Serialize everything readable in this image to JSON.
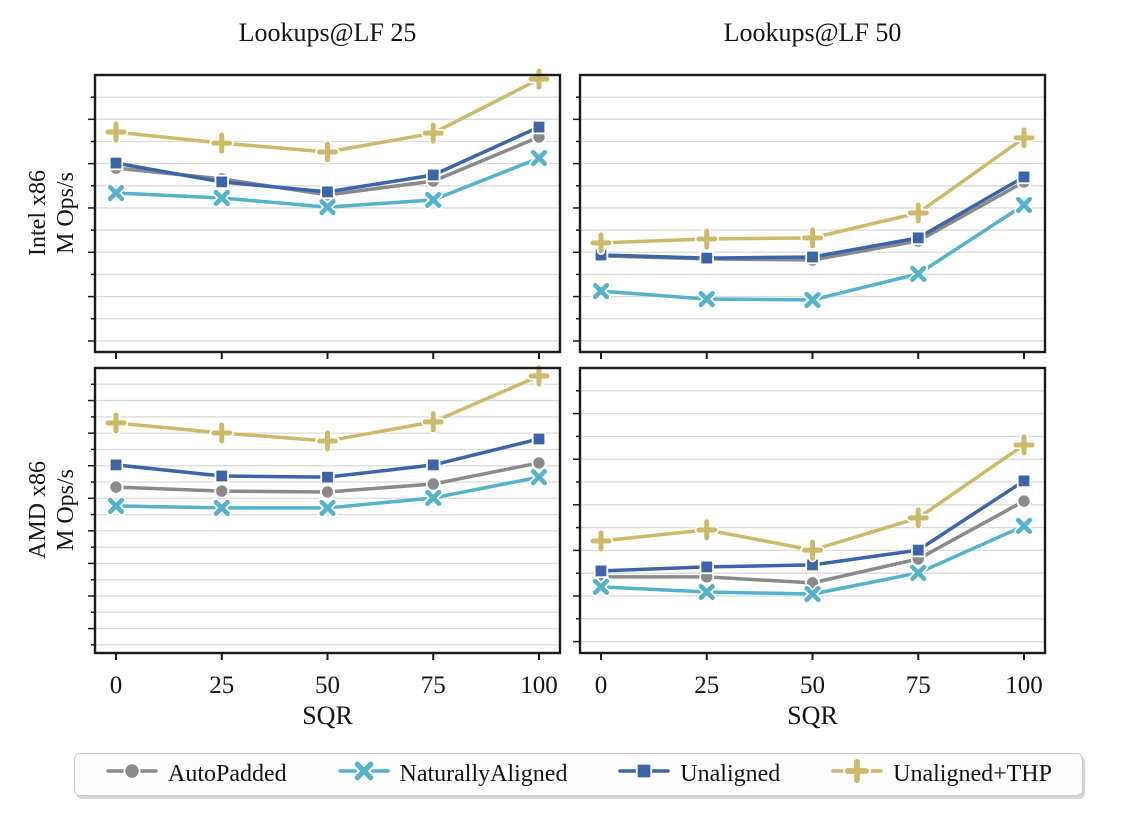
{
  "figure": {
    "column_titles": [
      "Lookups@LF 25",
      "Lookups@LF 50"
    ],
    "row_labels": [
      {
        "line1": "Intel x86",
        "line2": "M Ops/s"
      },
      {
        "line1": "AMD x86",
        "line2": "M Ops/s"
      }
    ],
    "xlabel": "SQR",
    "x_ticks": [
      "0",
      "25",
      "50",
      "75",
      "100"
    ]
  },
  "style": {
    "gray": "#8a8a8a",
    "cyan": "#54b2ca",
    "blue": "#3c64a8",
    "khaki": "#ccba6a",
    "grid_color": "#dadada",
    "spine_color": "#1b1b1b",
    "text_color": "#141414",
    "legend_border": "#c9c9c9",
    "legend_bg": "#fdfdfd"
  },
  "legend": {
    "items": [
      {
        "label": "AutoPadded",
        "marker": "circle",
        "color": "#8a8a8a"
      },
      {
        "label": "NaturallyAligned",
        "marker": "x",
        "color": "#54b2ca"
      },
      {
        "label": "Unaligned",
        "marker": "square",
        "color": "#3c64a8"
      },
      {
        "label": "Unaligned+THP",
        "marker": "plus",
        "color": "#ccba6a"
      }
    ]
  },
  "chart_data": [
    {
      "type": "line",
      "id": "intel-lf25",
      "title": "Lookups@LF 25",
      "row_label": "Intel x86",
      "xlabel": "SQR",
      "ylabel": "M Ops/s",
      "x": [
        0,
        25,
        50,
        75,
        100
      ],
      "ylim": [
        0,
        1
      ],
      "y_axis_note": "y ticks unlabeled; values are relative height of plot area",
      "grid": true,
      "legend_position": "bottom",
      "series": [
        {
          "name": "AutoPadded",
          "marker": "circle",
          "color": "#8a8a8a",
          "y_rel": [
            0.664,
            0.625,
            0.567,
            0.617,
            0.776
          ]
        },
        {
          "name": "NaturallyAligned",
          "marker": "x",
          "color": "#54b2ca",
          "y_rel": [
            0.574,
            0.556,
            0.523,
            0.549,
            0.7
          ]
        },
        {
          "name": "Unaligned",
          "marker": "square",
          "color": "#3c64a8",
          "y_rel": [
            0.682,
            0.614,
            0.578,
            0.639,
            0.812
          ]
        },
        {
          "name": "Unaligned+THP",
          "marker": "plus",
          "color": "#ccba6a",
          "y_rel": [
            0.794,
            0.754,
            0.722,
            0.79,
            0.985
          ]
        }
      ]
    },
    {
      "type": "line",
      "id": "intel-lf50",
      "title": "Lookups@LF 50",
      "row_label": "Intel x86",
      "xlabel": "SQR",
      "ylabel": "M Ops/s",
      "x": [
        0,
        25,
        50,
        75,
        100
      ],
      "ylim": [
        0,
        1
      ],
      "y_axis_note": "y ticks unlabeled; values are relative height of plot area",
      "grid": true,
      "legend_position": "bottom",
      "series": [
        {
          "name": "AutoPadded",
          "marker": "circle",
          "color": "#8a8a8a",
          "y_rel": [
            0.347,
            0.336,
            0.332,
            0.401,
            0.614
          ]
        },
        {
          "name": "NaturallyAligned",
          "marker": "x",
          "color": "#54b2ca",
          "y_rel": [
            0.22,
            0.191,
            0.188,
            0.282,
            0.531
          ]
        },
        {
          "name": "Unaligned",
          "marker": "square",
          "color": "#3c64a8",
          "y_rel": [
            0.35,
            0.339,
            0.343,
            0.412,
            0.632
          ]
        },
        {
          "name": "Unaligned+THP",
          "marker": "plus",
          "color": "#ccba6a",
          "y_rel": [
            0.394,
            0.408,
            0.412,
            0.502,
            0.773
          ]
        }
      ]
    },
    {
      "type": "line",
      "id": "amd-lf25",
      "title": "Lookups@LF 25",
      "row_label": "AMD x86",
      "xlabel": "SQR",
      "ylabel": "M Ops/s",
      "x": [
        0,
        25,
        50,
        75,
        100
      ],
      "ylim": [
        0,
        1
      ],
      "y_axis_note": "y ticks unlabeled; values are relative height of plot area",
      "grid": true,
      "legend_position": "bottom",
      "series": [
        {
          "name": "AutoPadded",
          "marker": "circle",
          "color": "#8a8a8a",
          "y_rel": [
            0.582,
            0.568,
            0.565,
            0.593,
            0.667
          ]
        },
        {
          "name": "NaturallyAligned",
          "marker": "x",
          "color": "#54b2ca",
          "y_rel": [
            0.516,
            0.509,
            0.509,
            0.544,
            0.617
          ]
        },
        {
          "name": "Unaligned",
          "marker": "square",
          "color": "#3c64a8",
          "y_rel": [
            0.66,
            0.621,
            0.617,
            0.66,
            0.751
          ]
        },
        {
          "name": "Unaligned+THP",
          "marker": "plus",
          "color": "#ccba6a",
          "y_rel": [
            0.807,
            0.772,
            0.744,
            0.811,
            0.972
          ]
        }
      ]
    },
    {
      "type": "line",
      "id": "amd-lf50",
      "title": "Lookups@LF 50",
      "row_label": "AMD x86",
      "xlabel": "SQR",
      "ylabel": "M Ops/s",
      "x": [
        0,
        25,
        50,
        75,
        100
      ],
      "ylim": [
        0,
        1
      ],
      "y_axis_note": "y ticks unlabeled; values are relative height of plot area",
      "grid": true,
      "legend_position": "bottom",
      "series": [
        {
          "name": "AutoPadded",
          "marker": "circle",
          "color": "#8a8a8a",
          "y_rel": [
            0.267,
            0.267,
            0.246,
            0.33,
            0.533
          ]
        },
        {
          "name": "NaturallyAligned",
          "marker": "x",
          "color": "#54b2ca",
          "y_rel": [
            0.232,
            0.214,
            0.207,
            0.281,
            0.446
          ]
        },
        {
          "name": "Unaligned",
          "marker": "square",
          "color": "#3c64a8",
          "y_rel": [
            0.288,
            0.302,
            0.309,
            0.361,
            0.604
          ]
        },
        {
          "name": "Unaligned+THP",
          "marker": "plus",
          "color": "#ccba6a",
          "y_rel": [
            0.393,
            0.432,
            0.361,
            0.474,
            0.73
          ]
        }
      ]
    }
  ]
}
